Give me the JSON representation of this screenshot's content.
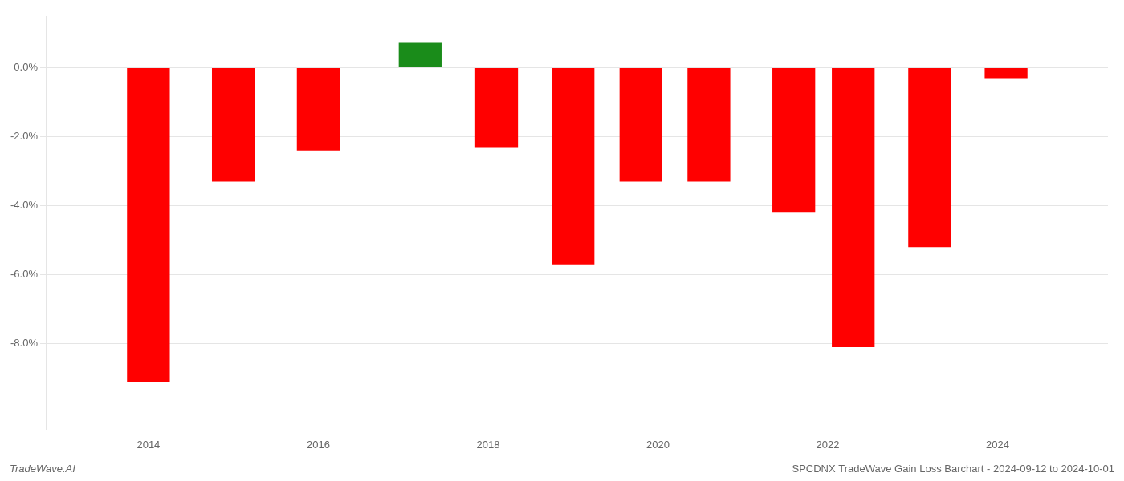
{
  "chart_data": {
    "type": "bar",
    "x": [
      2014.0,
      2015.0,
      2016.0,
      2017.2,
      2018.1,
      2019.0,
      2019.8,
      2020.6,
      2021.6,
      2022.3,
      2023.2,
      2024.1
    ],
    "values": [
      -9.1,
      -3.3,
      -2.4,
      0.72,
      -2.3,
      -5.7,
      -3.3,
      -3.3,
      -4.2,
      -8.1,
      -5.2,
      -0.3
    ],
    "colors": [
      "#ff0000",
      "#ff0000",
      "#ff0000",
      "#1a8c1a",
      "#ff0000",
      "#ff0000",
      "#ff0000",
      "#ff0000",
      "#ff0000",
      "#ff0000",
      "#ff0000",
      "#ff0000"
    ],
    "xlim": [
      2012.8,
      2025.3
    ],
    "ylim": [
      -10.5,
      1.5
    ],
    "xticks": [
      2014,
      2016,
      2018,
      2020,
      2022,
      2024
    ],
    "yticks": [
      {
        "value": 0.0,
        "label": "0.0%"
      },
      {
        "value": -2.0,
        "label": "-2.0%"
      },
      {
        "value": -4.0,
        "label": "-4.0%"
      },
      {
        "value": -6.0,
        "label": "-6.0%"
      },
      {
        "value": -8.0,
        "label": "-8.0%"
      }
    ],
    "grid": "y",
    "annotations": [
      "TradeWave.AI",
      "SPCDNX TradeWave Gain Loss Barchart - 2024-09-12 to 2024-10-01"
    ]
  }
}
